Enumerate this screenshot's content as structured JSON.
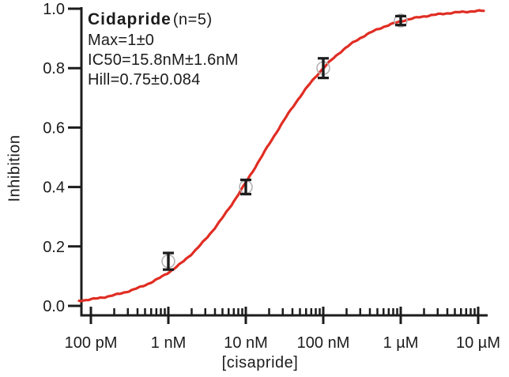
{
  "title": {
    "drug": "Cidapride",
    "n": "(n=5)"
  },
  "stats": {
    "max": "Max=1±0",
    "ic50": "IC50=15.8nM±1.6nM",
    "hill": "Hill=0.75±0.084"
  },
  "axes": {
    "y_label": "Inhibition",
    "x_label": "[cisapride]"
  },
  "colors": {
    "curve": "#e02d23",
    "axis": "#1c1c1c",
    "marker": "#b3b3b3",
    "error_bar": "#1c1c1c",
    "background": "#ffffff"
  },
  "chart_data": {
    "type": "line",
    "title": "Cidapride (n=5)",
    "xlabel": "[cisapride]",
    "ylabel": "Inhibition",
    "x_scale": "log",
    "ylim": [
      0.0,
      1.0
    ],
    "grid": false,
    "legend": "none",
    "x_tick_labels": [
      "100 pM",
      "1 nM",
      "10 nM",
      "100 nM",
      "1 µM",
      "10 µM"
    ],
    "x_tick_values_nM": [
      0.1,
      1,
      10,
      100,
      1000,
      10000
    ],
    "y_tick_labels": [
      "0.0",
      "0.2",
      "0.4",
      "0.6",
      "0.8",
      "1.0"
    ],
    "y_tick_values": [
      0.0,
      0.2,
      0.4,
      0.6,
      0.8,
      1.0
    ],
    "fit": {
      "model": "hill-sigmoid y = Max/(1+(IC50/x)^Hill)",
      "max": 1,
      "max_err": 0,
      "ic50_nM": 15.8,
      "ic50_err_nM": 1.6,
      "hill": 0.75,
      "hill_err": 0.084,
      "n": 5
    },
    "points": [
      {
        "x_label": "1 nM",
        "x_nM": 1,
        "y": 0.15,
        "err": 0.028
      },
      {
        "x_label": "10 nM",
        "x_nM": 10,
        "y": 0.4,
        "err": 0.024
      },
      {
        "x_label": "100 nM",
        "x_nM": 100,
        "y": 0.8,
        "err": 0.033
      },
      {
        "x_label": "1 µM",
        "x_nM": 1000,
        "y": 0.96,
        "err": 0.015
      }
    ]
  }
}
